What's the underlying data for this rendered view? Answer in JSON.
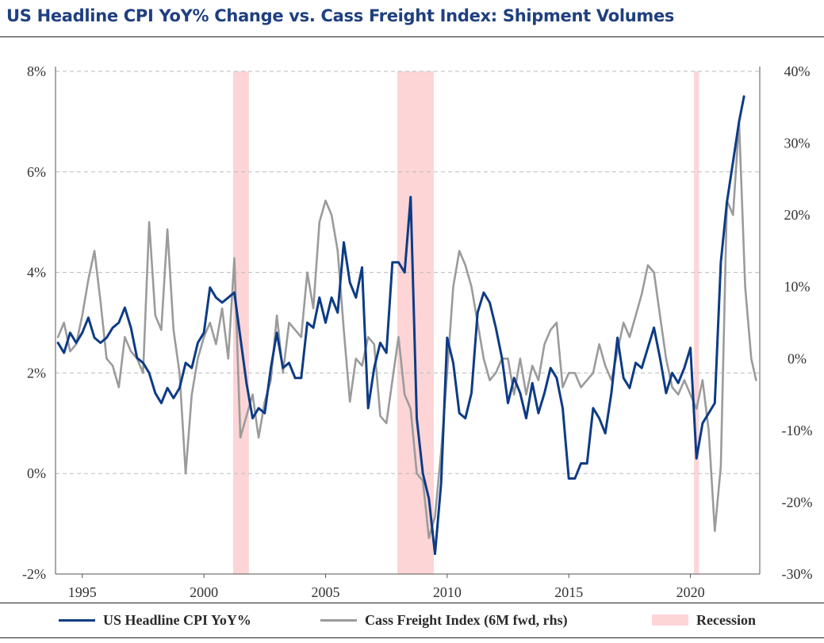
{
  "colors": {
    "title": "#1f3f7f",
    "cpi": "#0d3b85",
    "cass": "#9b9b9b",
    "recession": "#fdd5d6",
    "grid": "#bbbbbb",
    "axis": "#333333"
  },
  "legend": {
    "cpi": "US Headline CPI YoY%",
    "cass": "Cass Freight Index (6M fwd, rhs)",
    "recession": "Recession"
  },
  "chart_data": {
    "type": "line",
    "title": "US Headline CPI YoY% Change vs. Cass Freight Index: Shipment Volumes",
    "xlabel": "",
    "ylabel": "",
    "xlim": [
      1993.9,
      2022.85
    ],
    "ylim": [
      -2,
      8
    ],
    "y2lim": [
      -30,
      40
    ],
    "x_ticks": [
      1995,
      2000,
      2005,
      2010,
      2015,
      2020
    ],
    "x_tick_labels": [
      "1995",
      "2000",
      "2005",
      "2010",
      "2015",
      "2020"
    ],
    "y_ticks": [
      -2,
      0,
      2,
      4,
      6,
      8
    ],
    "y_tick_labels": [
      "-2%",
      "0%",
      "2%",
      "4%",
      "6%",
      "8%"
    ],
    "y2_ticks": [
      -30,
      -20,
      -10,
      0,
      10,
      20,
      30,
      40
    ],
    "y2_tick_labels": [
      "-30%",
      "-20%",
      "-10%",
      "0%",
      "10%",
      "20%",
      "30%",
      "40%"
    ],
    "grid": "horizontal dashed",
    "legend_position": "bottom",
    "recessions": [
      [
        2001.2,
        2001.85
      ],
      [
        2007.95,
        2009.45
      ],
      [
        2020.15,
        2020.35
      ]
    ],
    "series": [
      {
        "name": "US Headline CPI YoY%",
        "axis": "left",
        "x": [
          1994.0,
          1994.25,
          1994.5,
          1994.75,
          1995.0,
          1995.25,
          1995.5,
          1995.75,
          1996.0,
          1996.25,
          1996.5,
          1996.75,
          1997.0,
          1997.25,
          1997.5,
          1997.75,
          1998.0,
          1998.25,
          1998.5,
          1998.75,
          1999.0,
          1999.25,
          1999.5,
          1999.75,
          2000.0,
          2000.25,
          2000.5,
          2000.75,
          2001.0,
          2001.25,
          2001.5,
          2001.75,
          2002.0,
          2002.25,
          2002.5,
          2002.75,
          2003.0,
          2003.25,
          2003.5,
          2003.75,
          2004.0,
          2004.25,
          2004.5,
          2004.75,
          2005.0,
          2005.25,
          2005.5,
          2005.75,
          2006.0,
          2006.25,
          2006.5,
          2006.75,
          2007.0,
          2007.25,
          2007.5,
          2007.75,
          2008.0,
          2008.25,
          2008.5,
          2008.75,
          2009.0,
          2009.25,
          2009.5,
          2009.75,
          2010.0,
          2010.25,
          2010.5,
          2010.75,
          2011.0,
          2011.25,
          2011.5,
          2011.75,
          2012.0,
          2012.25,
          2012.5,
          2012.75,
          2013.0,
          2013.25,
          2013.5,
          2013.75,
          2014.0,
          2014.25,
          2014.5,
          2014.75,
          2015.0,
          2015.25,
          2015.5,
          2015.75,
          2016.0,
          2016.25,
          2016.5,
          2016.75,
          2017.0,
          2017.25,
          2017.5,
          2017.75,
          2018.0,
          2018.25,
          2018.5,
          2018.75,
          2019.0,
          2019.25,
          2019.5,
          2019.75,
          2020.0,
          2020.25,
          2020.5,
          2020.75,
          2021.0,
          2021.25,
          2021.5,
          2021.75,
          2022.0,
          2022.2
        ],
        "values": [
          2.6,
          2.4,
          2.8,
          2.6,
          2.8,
          3.1,
          2.7,
          2.6,
          2.7,
          2.9,
          3.0,
          3.3,
          2.9,
          2.3,
          2.2,
          2.0,
          1.6,
          1.4,
          1.7,
          1.5,
          1.7,
          2.2,
          2.1,
          2.6,
          2.8,
          3.7,
          3.5,
          3.4,
          3.5,
          3.6,
          2.7,
          1.8,
          1.1,
          1.3,
          1.2,
          2.1,
          2.8,
          2.1,
          2.2,
          1.9,
          1.9,
          3.0,
          2.9,
          3.5,
          3.0,
          3.5,
          3.2,
          4.6,
          3.8,
          3.5,
          4.1,
          1.3,
          2.1,
          2.6,
          2.4,
          4.2,
          4.2,
          4.0,
          5.5,
          1.1,
          0.0,
          -0.5,
          -1.6,
          -0.2,
          2.7,
          2.2,
          1.2,
          1.1,
          1.6,
          3.2,
          3.6,
          3.4,
          2.9,
          2.3,
          1.4,
          1.9,
          1.6,
          1.1,
          1.8,
          1.2,
          1.6,
          2.1,
          1.9,
          1.3,
          -0.1,
          -0.1,
          0.2,
          0.2,
          1.3,
          1.1,
          0.8,
          1.6,
          2.7,
          1.9,
          1.7,
          2.2,
          2.1,
          2.5,
          2.9,
          2.3,
          1.6,
          2.0,
          1.8,
          2.1,
          2.5,
          0.3,
          1.0,
          1.2,
          1.4,
          4.2,
          5.4,
          6.2,
          7.0,
          7.5
        ]
      },
      {
        "name": "Cass Freight Index (6M fwd, rhs)",
        "axis": "right",
        "x": [
          1994.0,
          1994.25,
          1994.5,
          1994.75,
          1995.0,
          1995.25,
          1995.5,
          1995.75,
          1996.0,
          1996.25,
          1996.5,
          1996.75,
          1997.0,
          1997.25,
          1997.5,
          1997.75,
          1998.0,
          1998.25,
          1998.5,
          1998.75,
          1999.0,
          1999.25,
          1999.5,
          1999.75,
          2000.0,
          2000.25,
          2000.5,
          2000.75,
          2001.0,
          2001.25,
          2001.5,
          2001.75,
          2002.0,
          2002.25,
          2002.5,
          2002.75,
          2003.0,
          2003.25,
          2003.5,
          2003.75,
          2004.0,
          2004.25,
          2004.5,
          2004.75,
          2005.0,
          2005.25,
          2005.5,
          2005.75,
          2006.0,
          2006.25,
          2006.5,
          2006.75,
          2007.0,
          2007.25,
          2007.5,
          2007.75,
          2008.0,
          2008.25,
          2008.5,
          2008.75,
          2009.0,
          2009.25,
          2009.5,
          2009.75,
          2010.0,
          2010.25,
          2010.5,
          2010.75,
          2011.0,
          2011.25,
          2011.5,
          2011.75,
          2012.0,
          2012.25,
          2012.5,
          2012.75,
          2013.0,
          2013.25,
          2013.5,
          2013.75,
          2014.0,
          2014.25,
          2014.5,
          2014.75,
          2015.0,
          2015.25,
          2015.5,
          2015.75,
          2016.0,
          2016.25,
          2016.5,
          2016.75,
          2017.0,
          2017.25,
          2017.5,
          2017.75,
          2018.0,
          2018.25,
          2018.5,
          2018.75,
          2019.0,
          2019.25,
          2019.5,
          2019.75,
          2020.0,
          2020.25,
          2020.5,
          2020.75,
          2021.0,
          2021.25,
          2021.5,
          2021.75,
          2022.0,
          2022.25,
          2022.5,
          2022.7
        ],
        "values": [
          3,
          5,
          1,
          2,
          6,
          11,
          15,
          8,
          0,
          -1,
          -4,
          3,
          1,
          0,
          -2,
          19,
          6,
          4,
          18,
          4,
          -2,
          -16,
          -5,
          0,
          3,
          5,
          2,
          7,
          0,
          14,
          -11,
          -8,
          -5,
          -11,
          -6,
          -3,
          6,
          -2,
          5,
          4,
          3,
          12,
          7,
          19,
          22,
          20,
          15,
          4,
          -6,
          0,
          -1,
          3,
          2,
          -8,
          -9,
          -3,
          3,
          -5,
          -7,
          -16,
          -17,
          -25,
          -22,
          -13,
          -2,
          10,
          15,
          13,
          10,
          5,
          0,
          -3,
          -2,
          0,
          0,
          -5,
          0,
          -5,
          -1,
          -3,
          2,
          4,
          5,
          -4,
          -2,
          -2,
          -4,
          -3,
          -2,
          2,
          -1,
          -3,
          1,
          5,
          3,
          6,
          9,
          13,
          12,
          6,
          0,
          -4,
          -5,
          -3,
          -5,
          -7,
          -3,
          -10,
          -24,
          -15,
          22,
          20,
          33,
          10,
          0,
          -3
        ]
      }
    ]
  }
}
